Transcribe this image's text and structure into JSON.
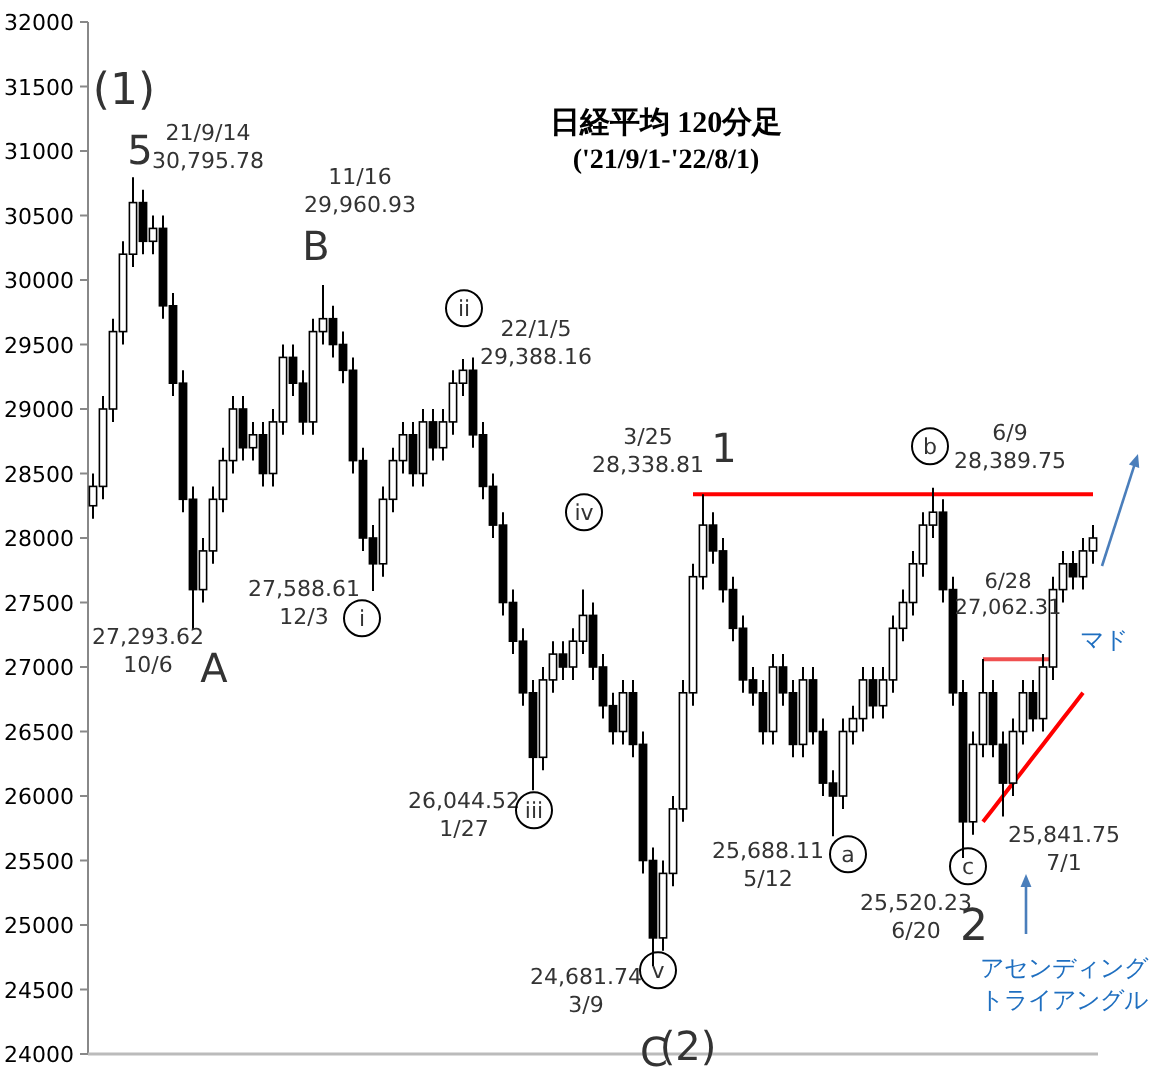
{
  "chart_data": {
    "type": "candlestick",
    "title": "日経平均 120分足",
    "subtitle": "('21/9/1-'22/8/1)",
    "color": "#000000",
    "ylim": [
      24000,
      32000
    ],
    "yticks": [
      24000,
      24500,
      25000,
      25500,
      26000,
      26500,
      27000,
      27500,
      28000,
      28500,
      29000,
      29500,
      30000,
      30500,
      31000,
      31500,
      32000
    ],
    "categories": [
      null,
      null,
      null,
      null,
      null,
      null,
      null,
      null,
      null,
      null,
      null,
      null,
      null,
      null,
      null,
      null,
      null,
      null,
      null,
      null,
      null,
      null,
      null,
      null,
      null,
      null,
      null,
      null,
      null,
      null,
      null,
      null,
      null,
      null,
      null,
      null,
      null,
      null,
      null,
      null,
      null,
      null,
      null,
      null,
      null,
      null,
      null,
      null,
      null,
      null,
      null,
      null,
      null,
      null,
      null,
      null,
      null,
      null,
      null,
      null,
      null,
      null,
      null,
      null,
      null,
      null,
      null,
      null,
      null,
      null,
      null,
      null,
      null,
      null,
      null,
      null,
      null,
      null,
      null,
      null,
      null,
      null,
      null,
      null,
      null,
      null,
      null,
      null,
      null,
      null,
      null,
      null,
      null,
      null,
      null,
      null,
      null,
      null,
      null,
      null,
      null
    ],
    "ohlc": [
      [
        28250,
        28500,
        28150,
        28400
      ],
      [
        28400,
        29100,
        28300,
        29000
      ],
      [
        29000,
        29700,
        28900,
        29600
      ],
      [
        29600,
        30300,
        29500,
        30200
      ],
      [
        30200,
        30795.78,
        30100,
        30600
      ],
      [
        30600,
        30700,
        30200,
        30300
      ],
      [
        30300,
        30500,
        30200,
        30400
      ],
      [
        30400,
        30500,
        29700,
        29800
      ],
      [
        29800,
        29900,
        29100,
        29200
      ],
      [
        29200,
        29300,
        28200,
        28300
      ],
      [
        28300,
        28400,
        27293.62,
        27600
      ],
      [
        27600,
        28000,
        27500,
        27900
      ],
      [
        27900,
        28400,
        27800,
        28300
      ],
      [
        28300,
        28700,
        28200,
        28600
      ],
      [
        28600,
        29100,
        28500,
        29000
      ],
      [
        29000,
        29100,
        28600,
        28700
      ],
      [
        28700,
        28900,
        28600,
        28800
      ],
      [
        28800,
        28900,
        28400,
        28500
      ],
      [
        28500,
        29000,
        28400,
        28900
      ],
      [
        28900,
        29500,
        28800,
        29400
      ],
      [
        29400,
        29500,
        29100,
        29200
      ],
      [
        29200,
        29300,
        28800,
        28900
      ],
      [
        28900,
        29700,
        28800,
        29600
      ],
      [
        29600,
        29960.93,
        29500,
        29700
      ],
      [
        29700,
        29800,
        29400,
        29500
      ],
      [
        29500,
        29600,
        29200,
        29300
      ],
      [
        29300,
        29400,
        28500,
        28600
      ],
      [
        28600,
        28700,
        27900,
        28000
      ],
      [
        28000,
        28100,
        27588.61,
        27800
      ],
      [
        27800,
        28400,
        27700,
        28300
      ],
      [
        28300,
        28700,
        28200,
        28600
      ],
      [
        28600,
        28900,
        28500,
        28800
      ],
      [
        28800,
        28900,
        28400,
        28500
      ],
      [
        28500,
        29000,
        28400,
        28900
      ],
      [
        28900,
        29000,
        28600,
        28700
      ],
      [
        28700,
        29000,
        28600,
        28900
      ],
      [
        28900,
        29300,
        28800,
        29200
      ],
      [
        29200,
        29388.16,
        29100,
        29300
      ],
      [
        29300,
        29400,
        28700,
        28800
      ],
      [
        28800,
        28900,
        28300,
        28400
      ],
      [
        28400,
        28500,
        28000,
        28100
      ],
      [
        28100,
        28200,
        27400,
        27500
      ],
      [
        27500,
        27600,
        27100,
        27200
      ],
      [
        27200,
        27300,
        26700,
        26800
      ],
      [
        26800,
        26900,
        26044.52,
        26300
      ],
      [
        26300,
        27000,
        26200,
        26900
      ],
      [
        26900,
        27200,
        26800,
        27100
      ],
      [
        27100,
        27200,
        26900,
        27000
      ],
      [
        27000,
        27300,
        26900,
        27200
      ],
      [
        27200,
        27600,
        27100,
        27400
      ],
      [
        27400,
        27500,
        26900,
        27000
      ],
      [
        27000,
        27100,
        26600,
        26700
      ],
      [
        26700,
        26800,
        26400,
        26500
      ],
      [
        26500,
        26900,
        26400,
        26800
      ],
      [
        26800,
        26900,
        26300,
        26400
      ],
      [
        26400,
        26500,
        25400,
        25500
      ],
      [
        25500,
        25600,
        24681.74,
        24900
      ],
      [
        24900,
        25500,
        24800,
        25400
      ],
      [
        25400,
        26000,
        25300,
        25900
      ],
      [
        25900,
        26900,
        25800,
        26800
      ],
      [
        26800,
        27800,
        26700,
        27700
      ],
      [
        27700,
        28338.81,
        27600,
        28100
      ],
      [
        28100,
        28200,
        27800,
        27900
      ],
      [
        27900,
        28000,
        27500,
        27600
      ],
      [
        27600,
        27700,
        27200,
        27300
      ],
      [
        27300,
        27400,
        26800,
        26900
      ],
      [
        26900,
        27000,
        26700,
        26800
      ],
      [
        26800,
        26900,
        26400,
        26500
      ],
      [
        26500,
        27100,
        26400,
        27000
      ],
      [
        27000,
        27100,
        26700,
        26800
      ],
      [
        26800,
        26900,
        26300,
        26400
      ],
      [
        26400,
        27000,
        26300,
        26900
      ],
      [
        26900,
        27000,
        26400,
        26500
      ],
      [
        26500,
        26600,
        26000,
        26100
      ],
      [
        26100,
        26200,
        25688.11,
        26000
      ],
      [
        26000,
        26600,
        25900,
        26500
      ],
      [
        26500,
        26700,
        26400,
        26600
      ],
      [
        26600,
        27000,
        26500,
        26900
      ],
      [
        26900,
        27000,
        26600,
        26700
      ],
      [
        26700,
        27000,
        26600,
        26900
      ],
      [
        26900,
        27400,
        26800,
        27300
      ],
      [
        27300,
        27600,
        27200,
        27500
      ],
      [
        27500,
        27900,
        27400,
        27800
      ],
      [
        27800,
        28200,
        27700,
        28100
      ],
      [
        28100,
        28389.75,
        28000,
        28200
      ],
      [
        28200,
        28300,
        27500,
        27600
      ],
      [
        27600,
        27700,
        26700,
        26800
      ],
      [
        26800,
        26900,
        25520.23,
        25800
      ],
      [
        25800,
        26500,
        25700,
        26400
      ],
      [
        26400,
        27062.31,
        26300,
        26800
      ],
      [
        26800,
        26900,
        26300,
        26400
      ],
      [
        26400,
        26500,
        25841.75,
        26100
      ],
      [
        26100,
        26600,
        26000,
        26500
      ],
      [
        26500,
        26900,
        26400,
        26800
      ],
      [
        26800,
        26900,
        26500,
        26600
      ],
      [
        26600,
        27100,
        26500,
        27000
      ],
      [
        27000,
        27700,
        26900,
        27600
      ],
      [
        27600,
        27900,
        27500,
        27800
      ],
      [
        27800,
        27900,
        27600,
        27700
      ],
      [
        27700,
        28000,
        27600,
        27900
      ],
      [
        27900,
        28100,
        27800,
        28000
      ]
    ],
    "series": [
      {
        "type": "line",
        "color": "#ff0000",
        "values": [
          null,
          null,
          null,
          null,
          null,
          null,
          null,
          null,
          null,
          null,
          null,
          null,
          null,
          null,
          null,
          null,
          null,
          null,
          null,
          null,
          null,
          null,
          null,
          null,
          null,
          null,
          null,
          null,
          null,
          null,
          null,
          null,
          null,
          null,
          null,
          null,
          null,
          null,
          null,
          null,
          null,
          null,
          null,
          null,
          null,
          null,
          null,
          null,
          null,
          null,
          null,
          null,
          null,
          null,
          null,
          null,
          null,
          null,
          null,
          null,
          28340,
          28340,
          28340,
          28340,
          28340,
          28340,
          28340,
          28340,
          28340,
          28340,
          28340,
          28340,
          28340,
          28340,
          28340,
          28340,
          28340,
          28340,
          28340,
          28340,
          28340,
          28340,
          28340,
          28340,
          28340,
          28340,
          28340,
          28340,
          28340,
          28340,
          28340,
          28340,
          28340,
          28340,
          28340,
          28340,
          28340,
          28340,
          28340,
          28340,
          28340
        ]
      },
      {
        "type": "line",
        "color": "#f05050",
        "values": [
          null,
          null,
          null,
          null,
          null,
          null,
          null,
          null,
          null,
          null,
          null,
          null,
          null,
          null,
          null,
          null,
          null,
          null,
          null,
          null,
          null,
          null,
          null,
          null,
          null,
          null,
          null,
          null,
          null,
          null,
          null,
          null,
          null,
          null,
          null,
          null,
          null,
          null,
          null,
          null,
          null,
          null,
          null,
          null,
          null,
          null,
          null,
          null,
          null,
          null,
          null,
          null,
          null,
          null,
          null,
          null,
          null,
          null,
          null,
          null,
          null,
          null,
          null,
          null,
          null,
          null,
          null,
          null,
          null,
          null,
          null,
          null,
          null,
          null,
          null,
          null,
          null,
          null,
          null,
          null,
          null,
          null,
          null,
          null,
          null,
          null,
          null,
          null,
          null,
          27060,
          27060,
          27060,
          27060,
          27060,
          27060,
          27060,
          27060,
          null,
          null,
          null,
          null
        ]
      },
      {
        "type": "line",
        "color": "#ff0000",
        "values": [
          null,
          null,
          null,
          null,
          null,
          null,
          null,
          null,
          null,
          null,
          null,
          null,
          null,
          null,
          null,
          null,
          null,
          null,
          null,
          null,
          null,
          null,
          null,
          null,
          null,
          null,
          null,
          null,
          null,
          null,
          null,
          null,
          null,
          null,
          null,
          null,
          null,
          null,
          null,
          null,
          null,
          null,
          null,
          null,
          null,
          null,
          null,
          null,
          null,
          null,
          null,
          null,
          null,
          null,
          null,
          null,
          null,
          null,
          null,
          null,
          null,
          null,
          null,
          null,
          null,
          null,
          null,
          null,
          null,
          null,
          null,
          null,
          null,
          null,
          null,
          null,
          null,
          null,
          null,
          null,
          null,
          null,
          null,
          null,
          null,
          null,
          null,
          null,
          null,
          25800,
          25900,
          26000,
          26100,
          26200,
          26300,
          26400,
          26500,
          26600,
          26700,
          26800,
          null
        ]
      }
    ],
    "annotations": [
      "(1)",
      "5",
      "21/9/14\n30,795.78",
      "B",
      "11/16\n29,960.93",
      "ii",
      "22/1/5\n29,388.16",
      "iv",
      "3/25\n28,338.81",
      "1",
      "b",
      "6/9\n28,389.75",
      "27,293.62\n10/6",
      "A",
      "27,588.61\n12/3",
      "i",
      "26,044.52\n1/27",
      "iii",
      "24,681.74\n3/9",
      "v",
      "C",
      "(2)",
      "25,688.11\n5/12",
      "a",
      "25,520.23\n6/20",
      "c",
      "2",
      "6/28\n27,062.31",
      "マド",
      "25,841.75\n7/1",
      "アセンディング",
      "トライアングル"
    ]
  }
}
